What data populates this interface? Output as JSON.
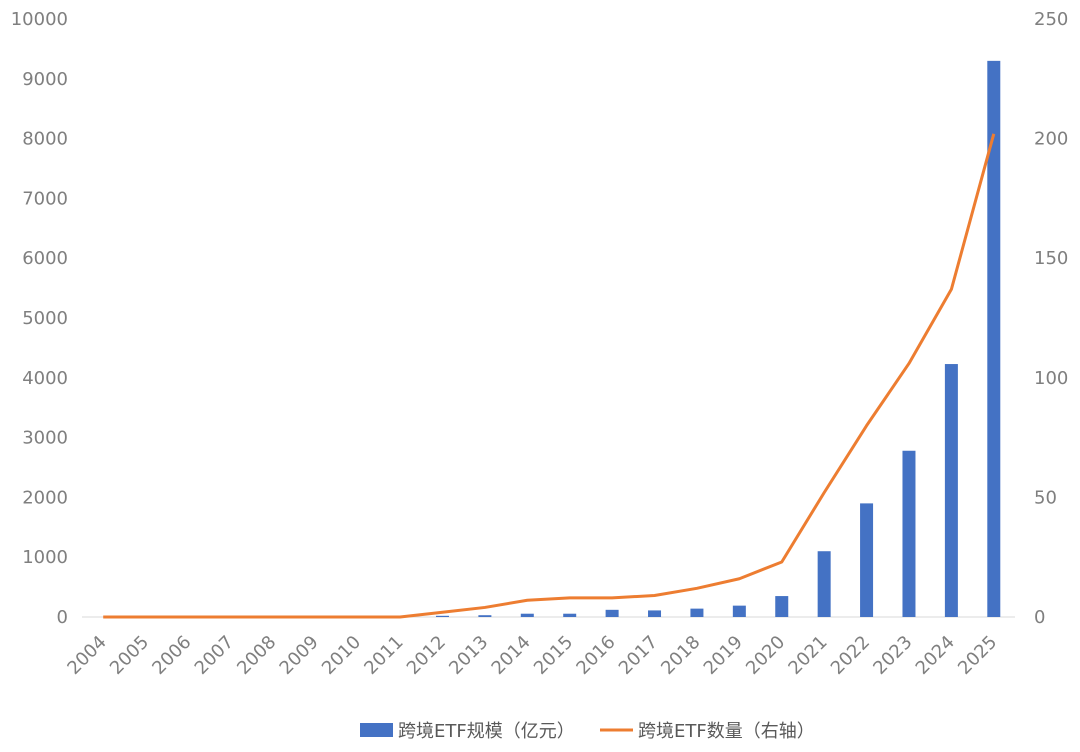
{
  "chart_data": {
    "type": "bar+line",
    "title": "",
    "categories": [
      "2004",
      "2005",
      "2006",
      "2007",
      "2008",
      "2009",
      "2010",
      "2011",
      "2012",
      "2013",
      "2014",
      "2015",
      "2016",
      "2017",
      "2018",
      "2019",
      "2020",
      "2021",
      "2022",
      "2023",
      "2024",
      "2025"
    ],
    "series": [
      {
        "name": "跨境ETF规模（亿元）",
        "type": "bar",
        "axis": "left",
        "color": "#4472c4",
        "values": [
          0,
          0,
          0,
          0,
          0,
          0,
          0,
          0,
          20,
          30,
          55,
          55,
          120,
          110,
          140,
          190,
          350,
          1100,
          1900,
          2780,
          4230,
          9300
        ]
      },
      {
        "name": "跨境ETF数量（右轴）",
        "type": "line",
        "axis": "right",
        "color": "#ed7d31",
        "values": [
          0,
          0,
          0,
          0,
          0,
          0,
          0,
          0,
          2,
          4,
          7,
          8,
          8,
          9,
          12,
          16,
          23,
          52,
          80,
          106,
          137,
          202
        ]
      }
    ],
    "y_left": {
      "min": 0,
      "max": 10000,
      "ticks": [
        "0",
        "1000",
        "2000",
        "3000",
        "4000",
        "5000",
        "6000",
        "7000",
        "8000",
        "9000",
        "10000"
      ]
    },
    "y_right": {
      "min": 0,
      "max": 250,
      "ticks": [
        "0",
        "50",
        "100",
        "150",
        "200",
        "250"
      ]
    },
    "grid": false,
    "legend_position": "bottom"
  }
}
